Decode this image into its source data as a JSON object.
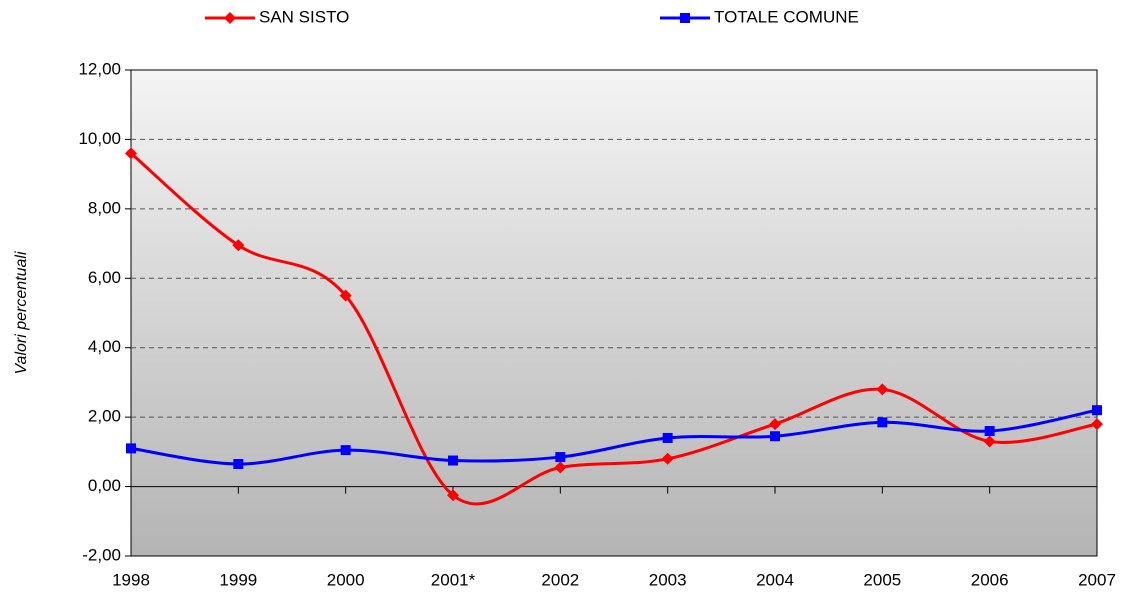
{
  "chart_data": {
    "type": "line",
    "y_label": "Valori percentuali",
    "categories": [
      "1998",
      "1999",
      "2000",
      "2001*",
      "2002",
      "2003",
      "2004",
      "2005",
      "2006",
      "2007"
    ],
    "series": [
      {
        "name": "SAN SISTO",
        "color": "#ff0000",
        "marker": "diamond",
        "values": [
          9.6,
          6.95,
          5.5,
          -0.25,
          0.55,
          0.8,
          1.8,
          2.8,
          1.3,
          1.8
        ]
      },
      {
        "name": "TOTALE COMUNE",
        "color": "#0000ff",
        "marker": "square",
        "values": [
          1.1,
          0.65,
          1.05,
          0.75,
          0.85,
          1.4,
          1.45,
          1.85,
          1.6,
          2.2
        ]
      }
    ],
    "ylim": [
      -2,
      12
    ],
    "yticks": [
      {
        "value": -2,
        "label": "-2,00"
      },
      {
        "value": 0,
        "label": "0,00"
      },
      {
        "value": 2,
        "label": "2,00"
      },
      {
        "value": 4,
        "label": "4,00"
      },
      {
        "value": 6,
        "label": "6,00"
      },
      {
        "value": 8,
        "label": "8,00"
      },
      {
        "value": 10,
        "label": "10,00"
      },
      {
        "value": 12,
        "label": "12,00"
      }
    ],
    "grid": true,
    "smooth": true,
    "legend": "top"
  }
}
